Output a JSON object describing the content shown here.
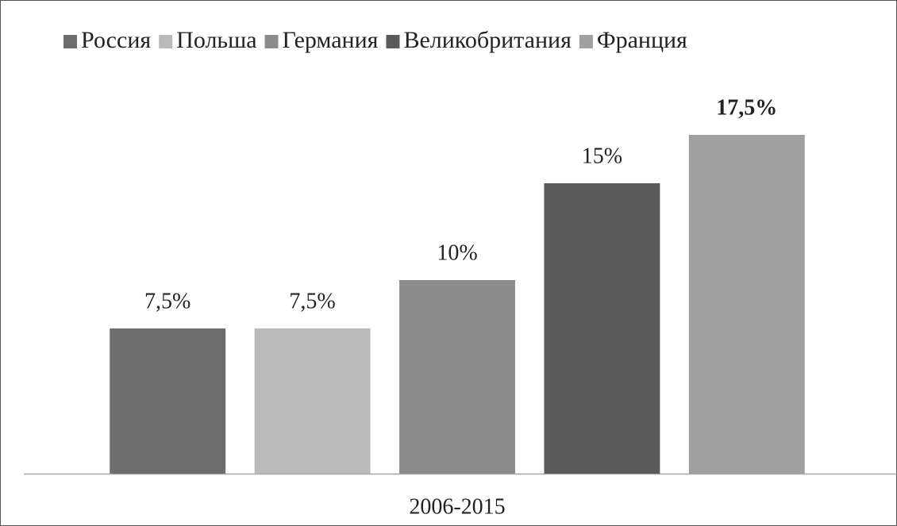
{
  "chart_data": {
    "type": "bar",
    "categories": [
      "2006-2015"
    ],
    "series": [
      {
        "name": "Россия",
        "color": "#6d6d6d",
        "values": [
          7.5
        ],
        "value_labels": [
          "7,5%"
        ]
      },
      {
        "name": "Польша",
        "color": "#bababa",
        "values": [
          7.5
        ],
        "value_labels": [
          "7,5%"
        ]
      },
      {
        "name": "Германия",
        "color": "#8b8b8b",
        "values": [
          10
        ],
        "value_labels": [
          "10%"
        ]
      },
      {
        "name": "Великобритания",
        "color": "#5a5a5a",
        "values": [
          15
        ],
        "value_labels": [
          "15%"
        ]
      },
      {
        "name": "Франция",
        "color": "#a0a0a0",
        "values": [
          17.5
        ],
        "value_labels": [
          "17,5%"
        ]
      }
    ],
    "legend": "top"
  }
}
